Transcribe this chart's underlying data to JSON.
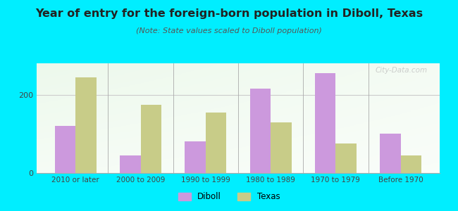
{
  "categories": [
    "2010 or later",
    "2000 to 2009",
    "1990 to 1999",
    "1980 to 1989",
    "1970 to 1979",
    "Before 1970"
  ],
  "diboll_values": [
    120,
    45,
    80,
    215,
    255,
    100
  ],
  "texas_values": [
    245,
    175,
    155,
    130,
    75,
    45
  ],
  "diboll_color": "#cc99dd",
  "texas_color": "#c8cc88",
  "title": "Year of entry for the foreign-born population in Diboll, Texas",
  "subtitle": "(Note: State values scaled to Diboll population)",
  "ylim": [
    0,
    280
  ],
  "yticks": [
    0,
    200
  ],
  "background_color": "#00eeff",
  "title_fontsize": 11.5,
  "subtitle_fontsize": 8,
  "legend_labels": [
    "Diboll",
    "Texas"
  ],
  "watermark": "City-Data.com"
}
